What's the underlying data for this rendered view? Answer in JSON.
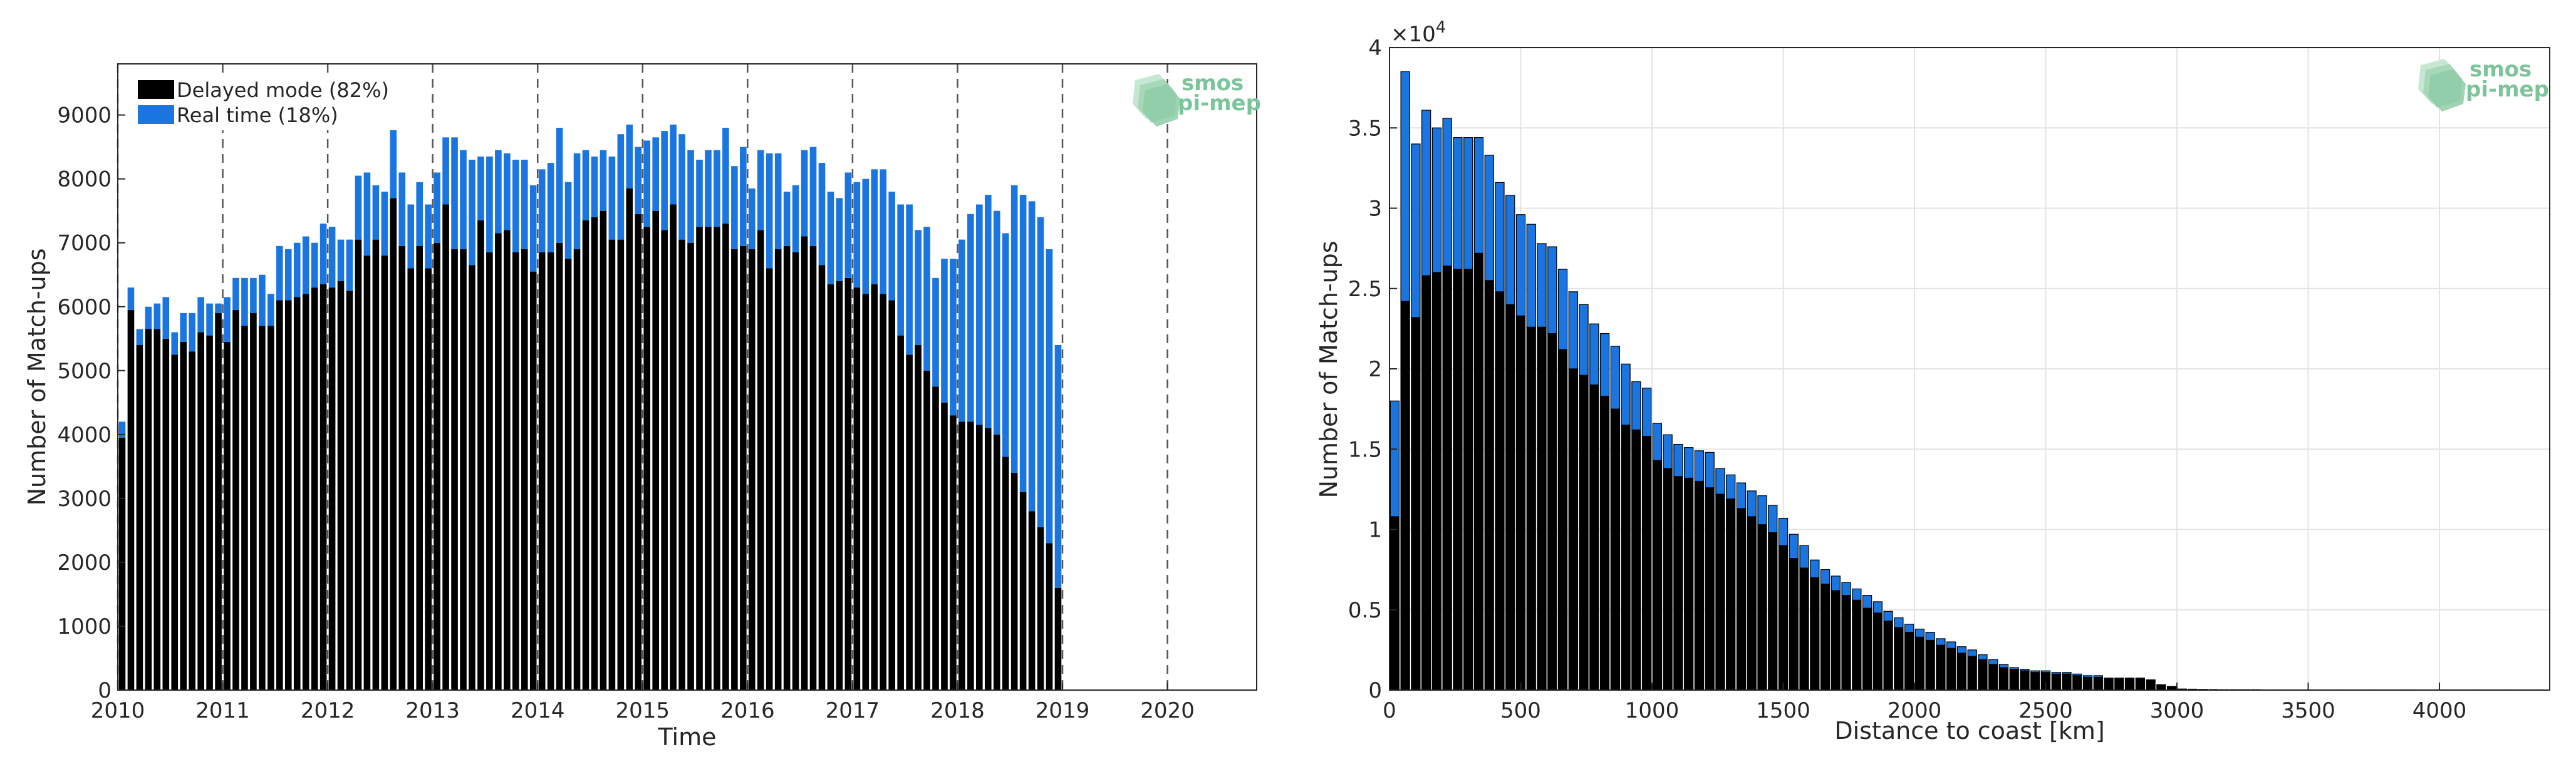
{
  "chart_data": [
    {
      "type": "bar",
      "stacked": true,
      "grid": false,
      "xlabel": "Time",
      "ylabel": "Number of Match-ups",
      "ylim": [
        0,
        9800
      ],
      "xlim": [
        2010,
        2020.85
      ],
      "x_ticks": [
        2010,
        2011,
        2012,
        2013,
        2014,
        2015,
        2016,
        2017,
        2018,
        2019,
        2020
      ],
      "y_ticks": [
        0,
        1000,
        2000,
        3000,
        4000,
        5000,
        6000,
        7000,
        8000,
        9000
      ],
      "year_dividers": [
        2010,
        2011,
        2012,
        2013,
        2014,
        2015,
        2016,
        2017,
        2018,
        2019,
        2020
      ],
      "x_start": 2010.0,
      "x_step": 0.08333,
      "legend_position": "top-left",
      "series": [
        {
          "name": "Delayed mode (82%)",
          "color": "#000000",
          "values": [
            3950,
            5950,
            5400,
            5650,
            5650,
            5500,
            5250,
            5450,
            5300,
            5600,
            5550,
            5900,
            5450,
            5950,
            5700,
            5900,
            5700,
            5700,
            6100,
            6100,
            6150,
            6200,
            6300,
            6350,
            6300,
            6400,
            6250,
            7050,
            6800,
            7050,
            6800,
            7700,
            6950,
            6600,
            6950,
            6600,
            7000,
            7600,
            6900,
            6900,
            6650,
            7350,
            6850,
            7150,
            7200,
            6850,
            6900,
            6550,
            6850,
            6850,
            7000,
            6750,
            6900,
            7350,
            7400,
            7500,
            7050,
            7050,
            7850,
            7450,
            7250,
            7500,
            7200,
            7600,
            7050,
            7000,
            7250,
            7250,
            7250,
            7300,
            6900,
            6950,
            6900,
            7200,
            6600,
            6900,
            6950,
            6850,
            7100,
            6950,
            6650,
            6350,
            6400,
            6450,
            6300,
            6200,
            6350,
            6200,
            6100,
            5550,
            5250,
            5400,
            5000,
            4750,
            4500,
            4300,
            4200,
            4200,
            4150,
            4100,
            4000,
            3650,
            3400,
            3100,
            2800,
            2550,
            2300,
            1600
          ]
        },
        {
          "name": "Real time (18%)",
          "color": "#1a75e0",
          "values": [
            250,
            350,
            250,
            350,
            400,
            650,
            350,
            450,
            600,
            550,
            500,
            150,
            700,
            500,
            750,
            550,
            800,
            500,
            850,
            800,
            850,
            900,
            700,
            950,
            950,
            650,
            800,
            1000,
            1300,
            850,
            1000,
            1150,
            1150,
            1000,
            1000,
            1000,
            1100,
            1050,
            1750,
            1550,
            1650,
            1000,
            1500,
            1300,
            1200,
            1450,
            1400,
            1350,
            1300,
            1400,
            1800,
            1200,
            1500,
            1100,
            950,
            950,
            1300,
            1650,
            1000,
            1050,
            1350,
            1150,
            1550,
            1250,
            1650,
            1450,
            1050,
            1200,
            1200,
            1500,
            1300,
            1550,
            950,
            1250,
            1800,
            1500,
            850,
            1050,
            1350,
            1550,
            1600,
            1450,
            1300,
            1650,
            1650,
            1800,
            1800,
            1950,
            1700,
            2050,
            2350,
            1800,
            2250,
            1700,
            2250,
            2450,
            2850,
            3250,
            3450,
            3650,
            3500,
            3500,
            4500,
            4650,
            4850,
            4850,
            4600,
            3800
          ]
        }
      ]
    },
    {
      "type": "bar",
      "stacked": true,
      "grid": true,
      "xlabel": "Distance to coast [km]",
      "ylabel": "Number of Match-ups",
      "exponent_label": "×10",
      "exponent_power": "4",
      "ylim": [
        0,
        4.0
      ],
      "xlim": [
        0,
        4420
      ],
      "x_ticks": [
        0,
        500,
        1000,
        1500,
        2000,
        2500,
        3000,
        3500,
        4000
      ],
      "y_ticks": [
        "0",
        "0.5",
        "1",
        "1.5",
        "2",
        "2.5",
        "3",
        "3.5",
        "4"
      ],
      "bin_width_km": 40,
      "series": [
        {
          "name": "Delayed mode",
          "color": "#000000",
          "values": [
            1.08,
            2.42,
            2.32,
            2.58,
            2.6,
            2.64,
            2.62,
            2.62,
            2.72,
            2.55,
            2.48,
            2.4,
            2.33,
            2.26,
            2.26,
            2.22,
            2.12,
            2.0,
            1.96,
            1.9,
            1.83,
            1.75,
            1.65,
            1.62,
            1.58,
            1.43,
            1.38,
            1.33,
            1.32,
            1.3,
            1.26,
            1.22,
            1.19,
            1.13,
            1.08,
            1.03,
            0.98,
            0.9,
            0.82,
            0.76,
            0.7,
            0.66,
            0.62,
            0.59,
            0.56,
            0.51,
            0.48,
            0.43,
            0.39,
            0.36,
            0.33,
            0.31,
            0.28,
            0.26,
            0.23,
            0.21,
            0.19,
            0.16,
            0.14,
            0.13,
            0.12,
            0.11,
            0.11,
            0.1,
            0.1,
            0.09,
            0.08,
            0.08,
            0.07,
            0.07,
            0.07,
            0.07,
            0.06,
            0.03,
            0.02,
            0.005,
            0.004,
            0.003,
            0.003,
            0.002,
            0.002,
            0.002,
            0.002,
            0.001,
            0.001,
            0.001,
            0.001,
            0.001,
            0.001,
            0.001,
            0.001,
            0.001,
            0.001,
            0.001,
            0.001,
            0.001,
            0.001,
            0.001,
            0.001,
            0.001,
            0.001,
            0.001,
            0.001,
            0.001,
            0.001,
            0.001,
            0.001,
            0.001,
            0.001,
            0.001
          ]
        },
        {
          "name": "Real time",
          "color": "#1a75e0",
          "values": [
            0.72,
            1.43,
            1.08,
            1.03,
            0.9,
            0.92,
            0.82,
            0.82,
            0.72,
            0.78,
            0.68,
            0.68,
            0.63,
            0.64,
            0.52,
            0.54,
            0.5,
            0.48,
            0.44,
            0.38,
            0.39,
            0.39,
            0.38,
            0.3,
            0.3,
            0.23,
            0.21,
            0.2,
            0.19,
            0.19,
            0.22,
            0.16,
            0.15,
            0.16,
            0.16,
            0.18,
            0.17,
            0.17,
            0.15,
            0.14,
            0.11,
            0.09,
            0.09,
            0.08,
            0.07,
            0.08,
            0.07,
            0.06,
            0.06,
            0.05,
            0.05,
            0.05,
            0.04,
            0.04,
            0.04,
            0.04,
            0.03,
            0.03,
            0.02,
            0.01,
            0.01,
            0.01,
            0.01,
            0.01,
            0.01,
            0.01,
            0.01,
            0.01,
            0.005,
            0.005,
            0.005,
            0.005,
            0.004,
            0.004,
            0.003,
            0.002,
            0.002,
            0.002,
            0.001,
            0.001,
            0.001,
            0.001,
            0.001,
            0.001,
            0.001,
            0.001,
            0.001,
            0.001,
            0.001,
            0.001,
            0.001,
            0.001,
            0.001,
            0.001,
            0.001,
            0.001,
            0.001,
            0.001,
            0.001,
            0.001,
            0.001,
            0.001,
            0.001,
            0.001,
            0.001,
            0.001,
            0.001,
            0.001,
            0.001,
            0.001
          ]
        }
      ]
    }
  ],
  "logo": {
    "line1": "smos",
    "line2": "pi-mep"
  }
}
